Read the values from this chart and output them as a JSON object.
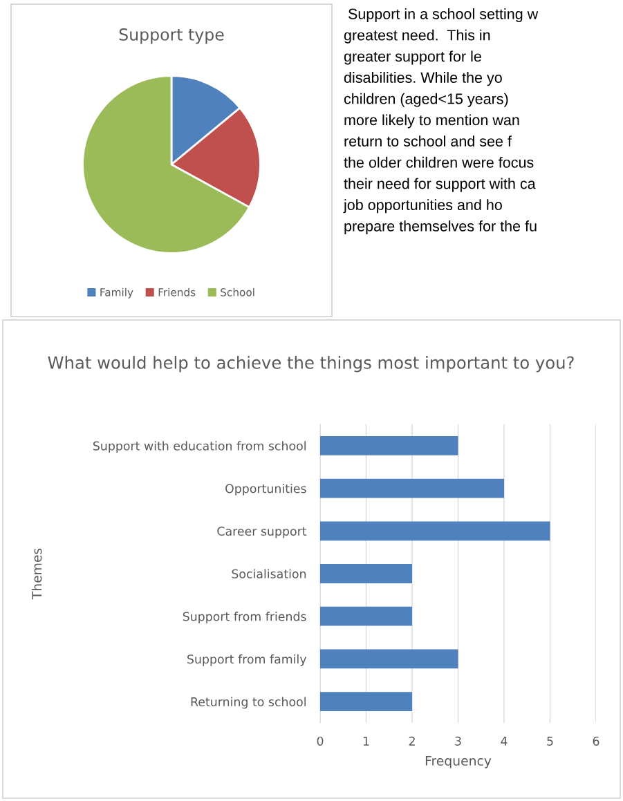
{
  "chart_data": [
    {
      "type": "pie",
      "title": "Support type",
      "categories": [
        "Family",
        "Friends",
        "School"
      ],
      "values": [
        14,
        19,
        67
      ],
      "colors": [
        "#4f81bd",
        "#c0504d",
        "#9bbb59"
      ],
      "legend": "bottom"
    },
    {
      "type": "other",
      "annotations": [
        " Support in a school setting w",
        "greatest need.  This in",
        "greater support for le",
        "disabilities. While the yo",
        "children (aged<15 years)",
        "more likely to mention wan",
        "return to school and see f",
        "the older children were focus",
        "their need for support with ca",
        "job opportunities and ho",
        "prepare themselves for the fu"
      ]
    },
    {
      "type": "bar",
      "orientation": "horizontal",
      "title": "What would help to achieve the things most important to you?",
      "xlabel": "Frequency",
      "ylabel": "Themes",
      "categories": [
        "Support with education from school",
        "Opportunities",
        "Career support",
        "Socialisation",
        "Support from friends",
        "Support from family",
        "Returning to school"
      ],
      "values": [
        3,
        4,
        5,
        2,
        2,
        3,
        2
      ],
      "color": "#4f81bd",
      "xlim": [
        0,
        6
      ],
      "xticks": [
        0,
        1,
        2,
        3,
        4,
        5,
        6
      ],
      "grid": "x",
      "legend": false
    }
  ]
}
